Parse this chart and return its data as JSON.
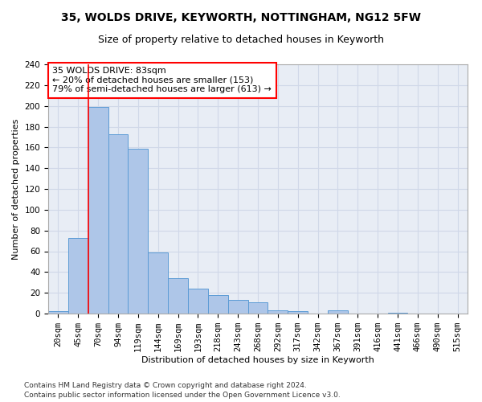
{
  "title1": "35, WOLDS DRIVE, KEYWORTH, NOTTINGHAM, NG12 5FW",
  "title2": "Size of property relative to detached houses in Keyworth",
  "xlabel": "Distribution of detached houses by size in Keyworth",
  "ylabel": "Number of detached properties",
  "categories": [
    "20sqm",
    "45sqm",
    "70sqm",
    "94sqm",
    "119sqm",
    "144sqm",
    "169sqm",
    "193sqm",
    "218sqm",
    "243sqm",
    "268sqm",
    "292sqm",
    "317sqm",
    "342sqm",
    "367sqm",
    "391sqm",
    "416sqm",
    "441sqm",
    "466sqm",
    "490sqm",
    "515sqm"
  ],
  "values": [
    2,
    73,
    199,
    173,
    159,
    59,
    34,
    24,
    18,
    13,
    11,
    3,
    2,
    0,
    3,
    0,
    0,
    1,
    0,
    0,
    0
  ],
  "bar_color": "#aec6e8",
  "bar_edge_color": "#5b9bd5",
  "vline_x": 1.5,
  "vline_color": "red",
  "annotation_text": "35 WOLDS DRIVE: 83sqm\n← 20% of detached houses are smaller (153)\n79% of semi-detached houses are larger (613) →",
  "annotation_box_color": "white",
  "annotation_box_edge_color": "red",
  "ylim": [
    0,
    240
  ],
  "yticks": [
    0,
    20,
    40,
    60,
    80,
    100,
    120,
    140,
    160,
    180,
    200,
    220,
    240
  ],
  "grid_color": "#d0d8e8",
  "background_color": "#e8edf5",
  "footer1": "Contains HM Land Registry data © Crown copyright and database right 2024.",
  "footer2": "Contains public sector information licensed under the Open Government Licence v3.0.",
  "title_fontsize": 10,
  "subtitle_fontsize": 9,
  "axis_label_fontsize": 8,
  "tick_fontsize": 7.5,
  "annotation_fontsize": 8,
  "footer_fontsize": 6.5
}
